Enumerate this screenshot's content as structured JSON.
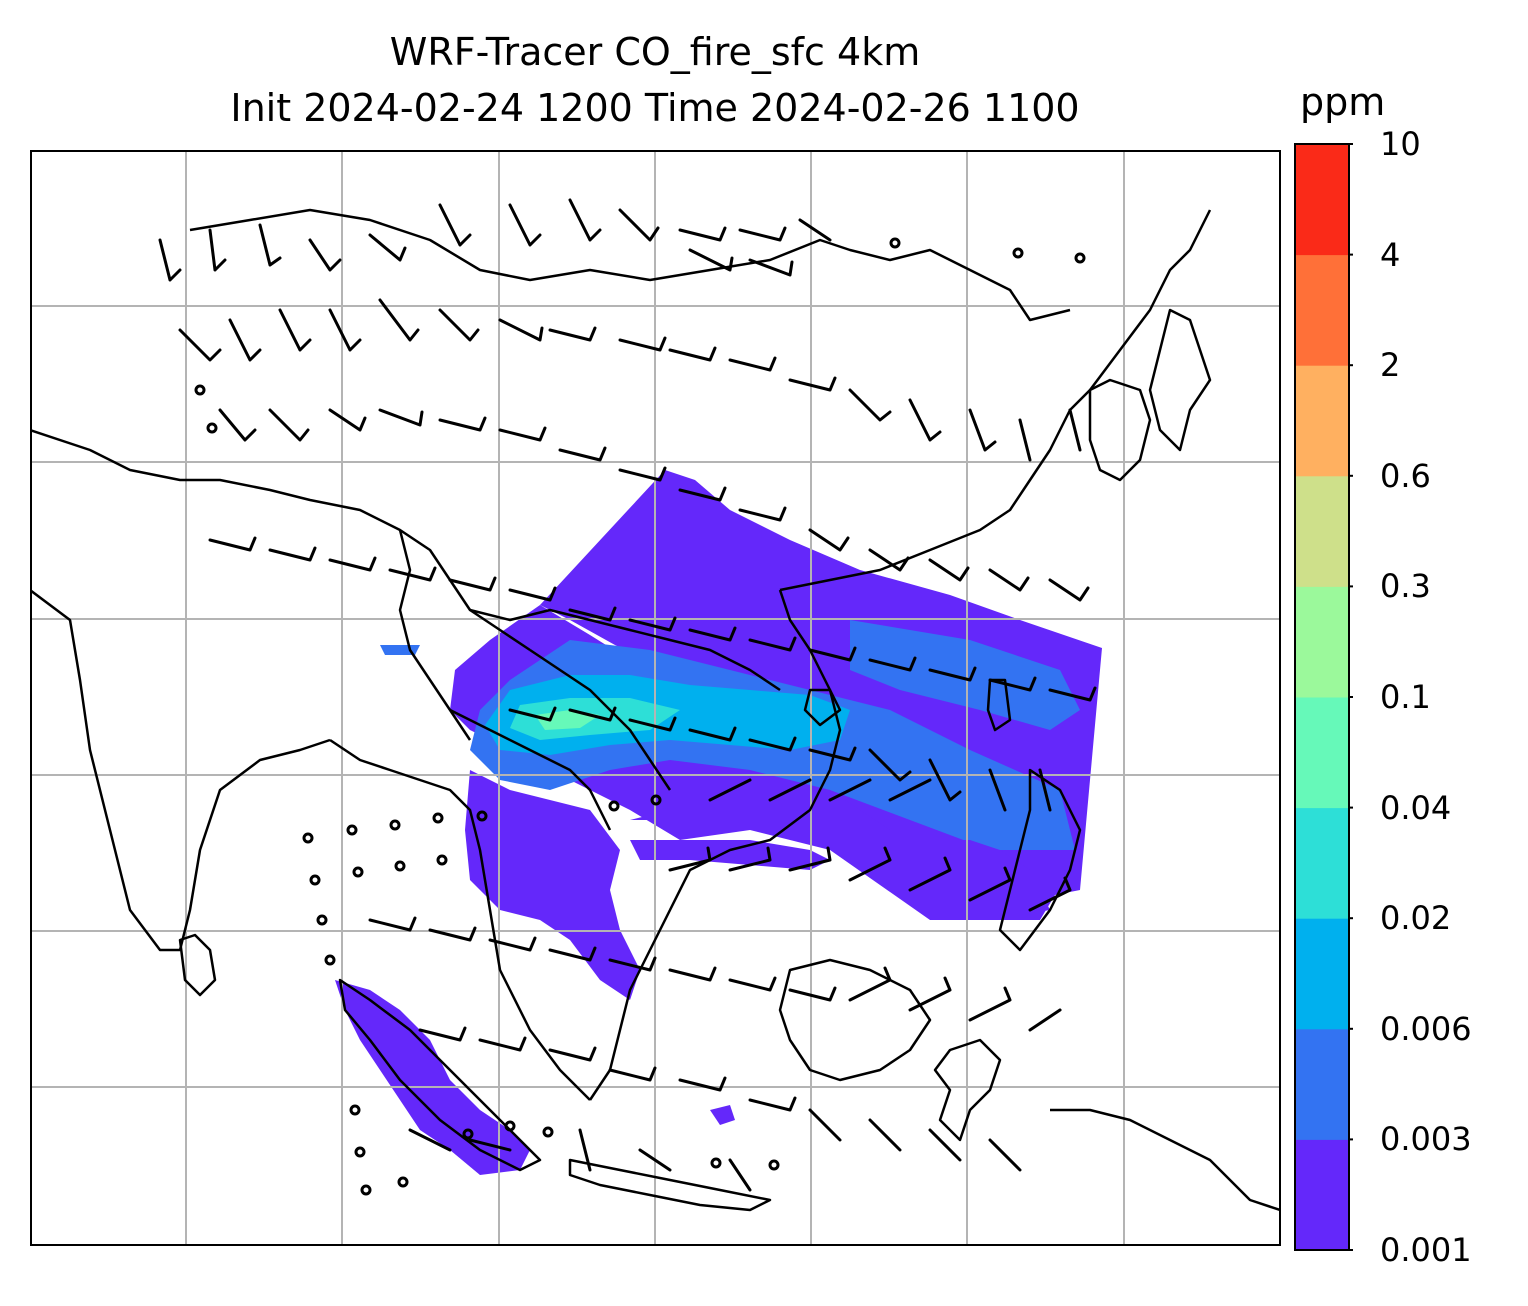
{
  "title": {
    "line1": "WRF-Tracer CO_fire_sfc 4km",
    "line2": "Init 2024-02-24 1200 Time 2024-02-26 1100"
  },
  "colorbar": {
    "unit": "ppm",
    "levels": [
      "0.001",
      "0.003",
      "0.006",
      "0.02",
      "0.04",
      "0.1",
      "0.3",
      "0.6",
      "2",
      "4",
      "10"
    ],
    "colors": [
      "#6428fa",
      "#3373f2",
      "#00b0ee",
      "#2ddfd7",
      "#66f9b9",
      "#9bf99b",
      "#cee08a",
      "#ffb060",
      "#ff7038",
      "#fa2a18"
    ]
  },
  "map": {
    "grid": true,
    "field_colors": {
      "background": "#ffffff",
      "plume_outer": "#6428fa",
      "plume_mid": "#3373f2",
      "plume_inner": "#00b0ee",
      "plume_core": "#2ddfd7",
      "plume_peak": "#66f9b9",
      "coastline": "#000000",
      "gridline": "#b4b4b4"
    }
  }
}
